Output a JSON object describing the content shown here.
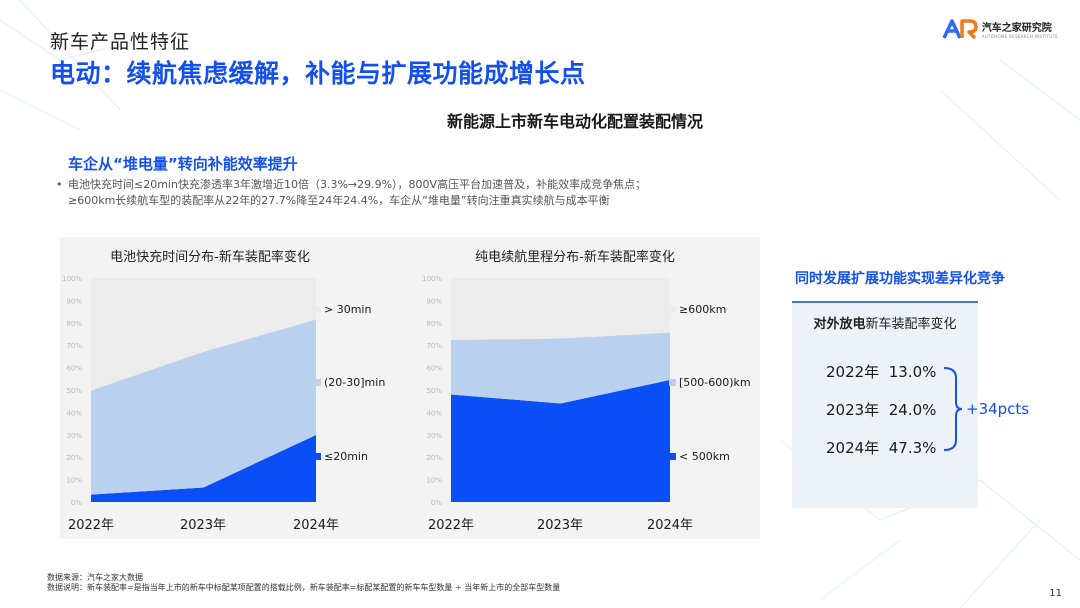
{
  "header": {
    "section": "新车产品性特征",
    "title": "电动：续航焦虑缓解，补能与扩展功能成增长点",
    "brand": "汽车之家研究院",
    "brand_sub": "AUTOHOME RESEARCH INSTITUTE"
  },
  "section_title": "新能源上市新车电动化配置装配情况",
  "left": {
    "heading": "车企从“堆电量”转向补能效率提升",
    "bullet_line1": "电池快充时间≤20min快充渗透率3年激增近10倍（3.3%→29.9%），800V高压平台加速普及，补能效率成竞争焦点；",
    "bullet_line2": "≥600km长续航车型的装配率从22年的27.7%降至24年24.4%，车企从“堆电量”转向注重真实续航与成本平衡"
  },
  "chart_data": [
    {
      "type": "area",
      "stacked": true,
      "title": "电池快充时间分布-新车装配率变化",
      "categories": [
        "2022年",
        "2023年",
        "2024年"
      ],
      "ylim": [
        0,
        100
      ],
      "y_ticks": [
        "0%",
        "10%",
        "20%",
        "30%",
        "40%",
        "50%",
        "60%",
        "70%",
        "80%",
        "90%",
        "100%"
      ],
      "legend_position": "right",
      "series": [
        {
          "name": "≤20min",
          "values": [
            3.3,
            6.5,
            29.9
          ],
          "color": "#0a4ff5"
        },
        {
          "name": "(20-30]min",
          "values": [
            46.5,
            60.5,
            51.6
          ],
          "color": "#b9d0ee"
        },
        {
          "name": "> 30min",
          "values": [
            50.2,
            33.0,
            18.5
          ],
          "color": "#ececec"
        }
      ]
    },
    {
      "type": "area",
      "stacked": true,
      "title": "纯电续航里程分布-新车装配率变化",
      "categories": [
        "2022年",
        "2023年",
        "2024年"
      ],
      "ylim": [
        0,
        100
      ],
      "y_ticks": [
        "0%",
        "10%",
        "20%",
        "30%",
        "40%",
        "50%",
        "60%",
        "70%",
        "80%",
        "90%",
        "100%"
      ],
      "legend_position": "right",
      "series": [
        {
          "name": "< 500km",
          "values": [
            48.0,
            44.0,
            54.5
          ],
          "color": "#0a4ff5"
        },
        {
          "name": "[500-600)km",
          "values": [
            24.3,
            29.0,
            21.1
          ],
          "color": "#b9d0ee"
        },
        {
          "name": "≥600km",
          "values": [
            27.7,
            27.0,
            24.4
          ],
          "color": "#ececec"
        }
      ]
    }
  ],
  "right": {
    "heading": "同时发展扩展功能实现差异化竞争",
    "sub_bold": "对外放电",
    "sub_rest": "新车装配率变化",
    "rows": [
      {
        "year": "2022年",
        "value": "13.0%"
      },
      {
        "year": "2023年",
        "value": "24.0%"
      },
      {
        "year": "2024年",
        "value": "47.3%"
      }
    ],
    "delta": "+34pcts",
    "accent": "#1350ee"
  },
  "footer": {
    "source": "数据来源：汽车之家大数据",
    "note": "数据说明：新车装配率=是指当年上市的新车中标配某项配置的搭载比例，新车装配率=标配某配置的新车车型数量 ÷ 当年新上市的全部车型数量"
  },
  "page": "11"
}
